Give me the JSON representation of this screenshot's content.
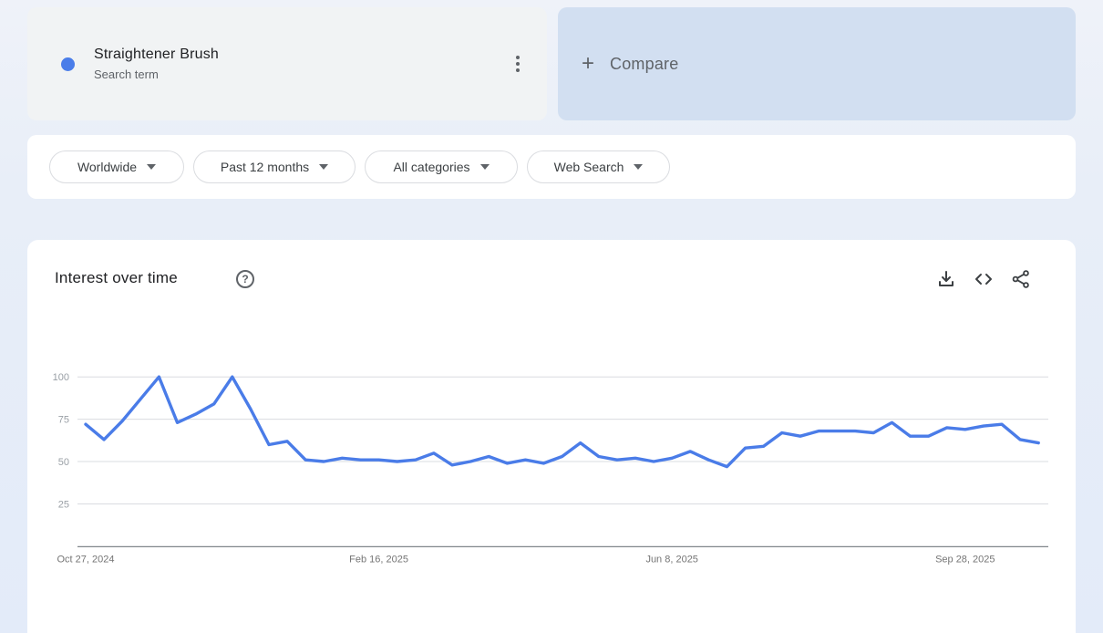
{
  "term_card": {
    "term": "Straightener Brush",
    "type_label": "Search term",
    "dot_color": "#4a7de9"
  },
  "compare_card": {
    "plus_icon": "+",
    "label": "Compare"
  },
  "filters": [
    {
      "id": "geo",
      "label": "Worldwide"
    },
    {
      "id": "time",
      "label": "Past 12 months"
    },
    {
      "id": "category",
      "label": "All categories"
    },
    {
      "id": "property",
      "label": "Web Search"
    }
  ],
  "chart_section": {
    "title": "Interest over time",
    "help_icon": "?",
    "toolbar_icons": [
      "download-icon",
      "embed-code-icon",
      "share-icon"
    ]
  },
  "chart_data": {
    "type": "line",
    "title": "Interest over time",
    "series_name": "Straightener Brush",
    "x_start_label": "Oct 27, 2024",
    "x_tick_labels": [
      "Oct 27, 2024",
      "Feb 16, 2025",
      "Jun 8, 2025",
      "Sep 28, 2025"
    ],
    "x_tick_weeks": [
      0,
      16,
      32,
      48
    ],
    "values": [
      72,
      63,
      74,
      87,
      100,
      73,
      78,
      84,
      100,
      81,
      60,
      62,
      51,
      50,
      52,
      51,
      51,
      50,
      51,
      55,
      48,
      50,
      53,
      49,
      51,
      49,
      53,
      61,
      53,
      51,
      52,
      50,
      52,
      56,
      51,
      47,
      58,
      59,
      67,
      65,
      68,
      68,
      68,
      67,
      73,
      65,
      65,
      70,
      69,
      71,
      72,
      63,
      61
    ],
    "yticks": [
      25,
      50,
      75,
      100
    ],
    "ylim": [
      0,
      100
    ],
    "grid": true,
    "legend": "none",
    "line_color": "#4a7ce8",
    "grid_color": "#dadce0",
    "axis_color": "#80868b",
    "ytick_color": "#9aa0a6",
    "xtick_color": "#757575"
  }
}
